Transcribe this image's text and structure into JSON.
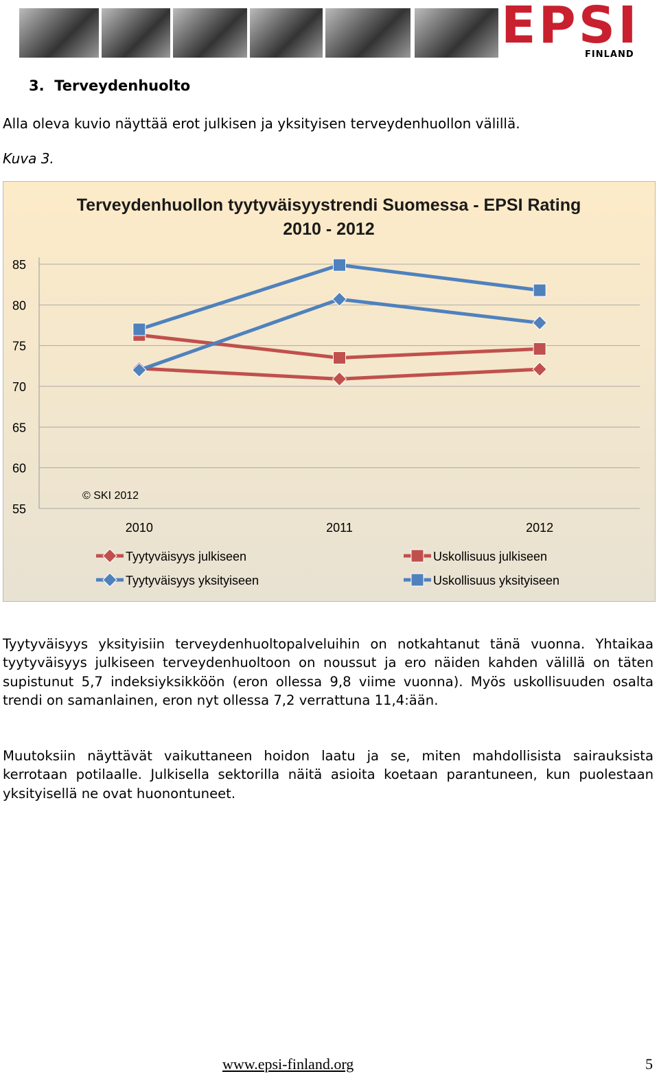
{
  "header": {
    "logo_text": "EPSI",
    "logo_sub": "FINLAND"
  },
  "section_title": "3.  Terveydenhuolto",
  "intro": "Alla oleva kuvio näyttää erot julkisen ja yksityisen terveydenhuollon välillä.",
  "figure_label": "Kuva 3.",
  "chart_data": {
    "type": "line",
    "title": [
      "Terveydenhuollon tyytyväisyystrendi Suomessa - EPSI Rating",
      "2010 - 2012"
    ],
    "annotation": "© SKI 2012",
    "categories": [
      "2010",
      "2011",
      "2012"
    ],
    "ylim": [
      55,
      85
    ],
    "yticks": [
      55,
      60,
      65,
      70,
      75,
      80,
      85
    ],
    "grid": true,
    "series": [
      {
        "name": "Tyytyväisyys julkiseen",
        "color": "#c0504d",
        "marker": "diamond",
        "values": [
          72.2,
          70.9,
          72.1
        ]
      },
      {
        "name": "Uskollisuus julkiseen",
        "color": "#c0504d",
        "marker": "square",
        "values": [
          76.3,
          73.5,
          74.6
        ]
      },
      {
        "name": "Tyytyväisyys yksityiseen",
        "color": "#4f81bd",
        "marker": "diamond",
        "values": [
          72.0,
          80.7,
          77.8
        ]
      },
      {
        "name": "Uskollisuus yksityiseen",
        "color": "#4f81bd",
        "marker": "square",
        "values": [
          77.0,
          84.9,
          81.8
        ]
      }
    ]
  },
  "paragraphs": [
    "Tyytyväisyys yksityisiin terveydenhuoltopalveluihin on notkahtanut tänä vuonna. Yhtaikaa tyytyväisyys julkiseen terveydenhuoltoon on noussut ja ero näiden kahden välillä on täten supistunut 5,7 indeksiyksikköön (eron ollessa 9,8 viime vuonna). Myös uskollisuuden osalta trendi on samanlainen, eron nyt ollessa 7,2 verrattuna 11,4:ään.",
    "Muutoksiin näyttävät vaikuttaneen hoidon laatu ja se, miten mahdollisista sairauksista kerrotaan potilaalle. Julkisella sektorilla näitä asioita koetaan parantuneen, kun puolestaan yksityisellä ne ovat huonontuneet."
  ],
  "footer": {
    "url": "www.epsi-finland.org",
    "page": "5"
  }
}
